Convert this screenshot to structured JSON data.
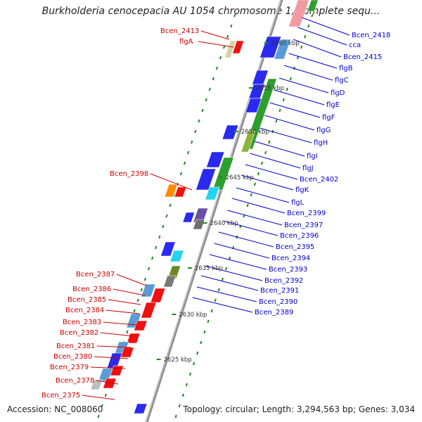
{
  "title": "Burkholderia cenocepacia AU 1054 chromosome 1, complete sequ...",
  "accession": "Accession: NC_008060",
  "topology": "Topology: circular; Length: 3,294,563 bp; Genes: 3,034",
  "colors": {
    "forward_label": "#cc0000",
    "reverse_label": "#0000cc",
    "backbone": "#8c8c8c",
    "dots": "#1f8a1f"
  },
  "kbp_labels": [
    "2660 kbp",
    "2655 kbp",
    "2650 kbp",
    "2645 kbp",
    "2640 kbp",
    "2635 kbp",
    "2630 kbp",
    "2625 kbp"
  ],
  "left_labels": [
    "Bcen_2413",
    "flgA",
    "Bcen_2398",
    "Bcen_2387",
    "Bcen_2386",
    "Bcen_2385",
    "Bcen_2384",
    "Bcen_2383",
    "Bcen_2382",
    "Bcen_2381",
    "Bcen_2380",
    "Bcen_2379",
    "Bcen_2378",
    "Bcen_2375"
  ],
  "right_labels": [
    "Bcen_2418",
    "cca",
    "Bcen_2415",
    "flgB",
    "flgC",
    "flgD",
    "flgE",
    "flgF",
    "flgG",
    "flgH",
    "flgI",
    "flgJ",
    "Bcen_2402",
    "flgK",
    "flgL",
    "Bcen_2399",
    "Bcen_2397",
    "Bcen_2396",
    "Bcen_2395",
    "Bcen_2394",
    "Bcen_2393",
    "Bcen_2392",
    "Bcen_2391",
    "Bcen_2390",
    "Bcen_2389"
  ]
}
